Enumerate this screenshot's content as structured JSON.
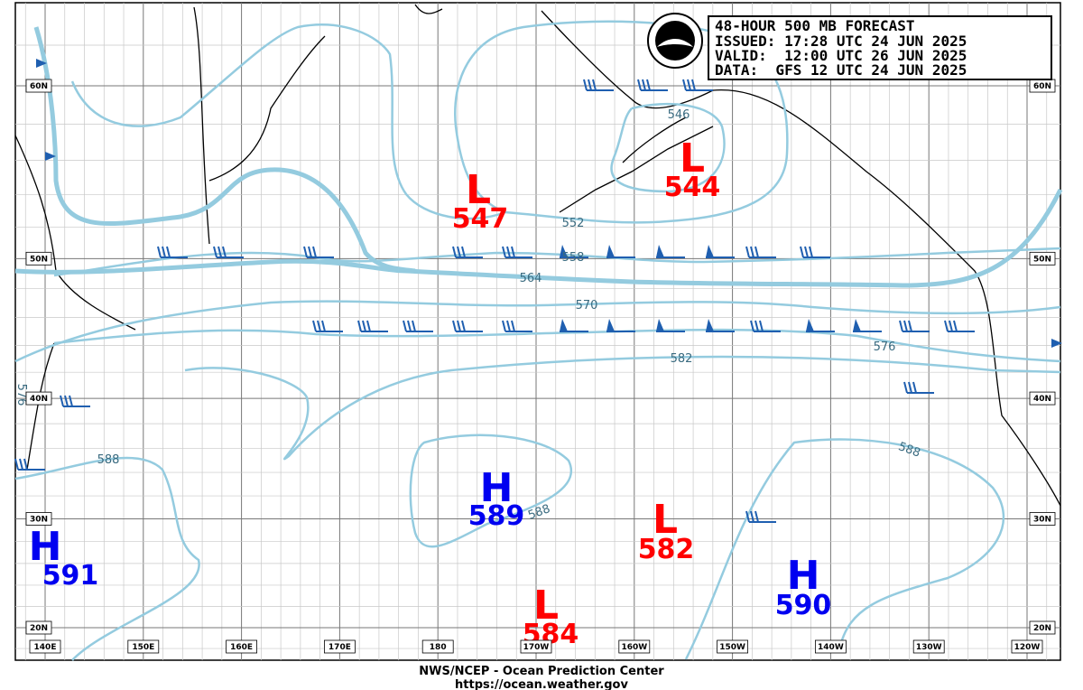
{
  "header": {
    "lines": [
      "48-HOUR 500 MB FORECAST",
      "ISSUED: 17:28 UTC 24 JUN 2025",
      "VALID:  12:00 UTC 26 JUN 2025",
      "DATA:  GFS 12 UTC 24 JUN 2025"
    ]
  },
  "centers": [
    {
      "label": "L",
      "value": 547
    },
    {
      "label": "L",
      "value": 544
    },
    {
      "label": "H",
      "value": 589
    },
    {
      "label": "L",
      "value": 582
    },
    {
      "label": "H",
      "value": 591
    },
    {
      "label": "L",
      "value": 584
    },
    {
      "label": "H",
      "value": 590
    }
  ],
  "contour_labels": [
    546,
    552,
    558,
    564,
    570,
    576,
    582,
    588,
    588,
    588,
    576
  ],
  "latitudes": [
    "60N",
    "50N",
    "40N",
    "30N",
    "20N"
  ],
  "longitudes": [
    "140E",
    "150E",
    "160E",
    "170E",
    "180",
    "170W",
    "160W",
    "150W",
    "140W",
    "130W",
    "120W"
  ],
  "footer": {
    "line1": "NWS/NCEP - Ocean Prediction Center",
    "line2": "https://ocean.weather.gov"
  }
}
